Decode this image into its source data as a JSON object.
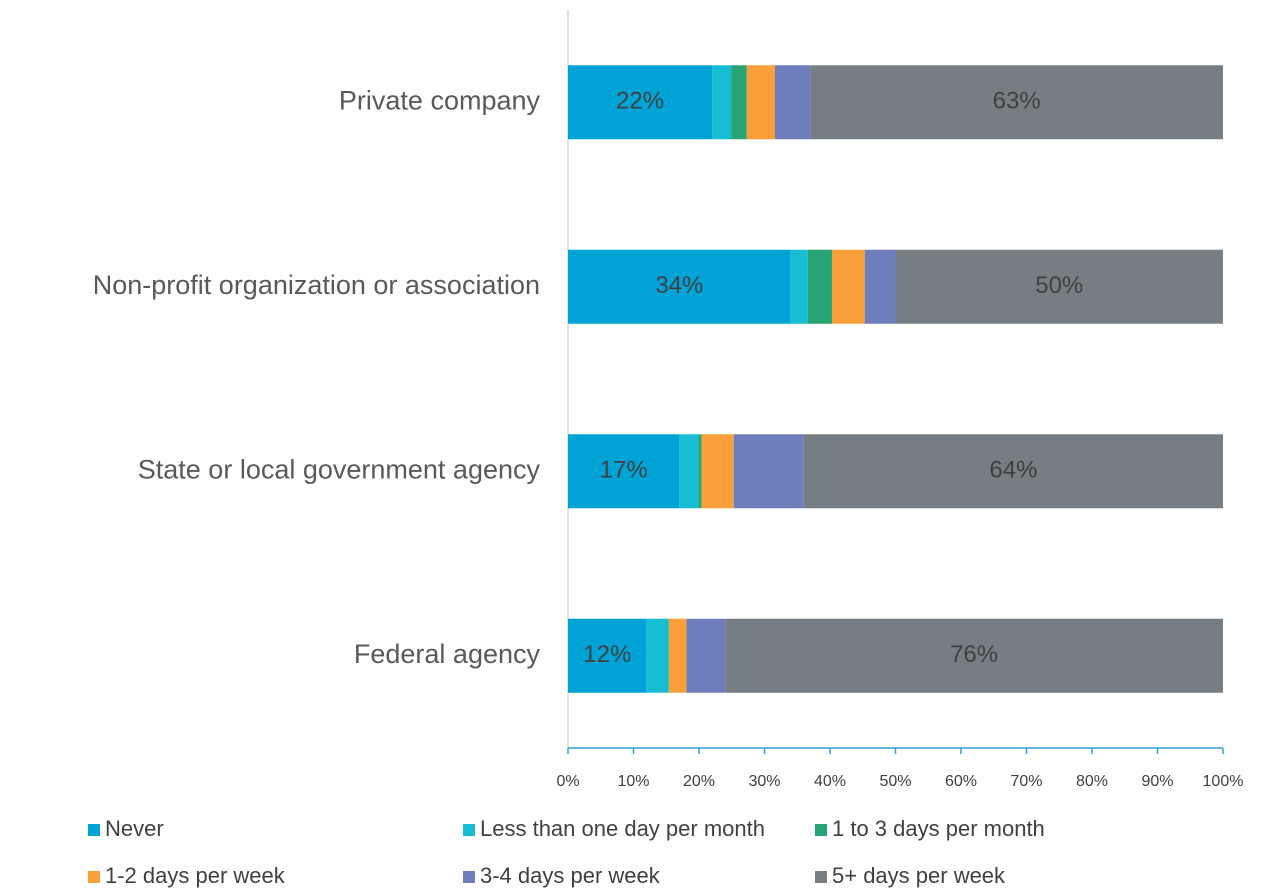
{
  "chart_data": {
    "type": "stacked-bar",
    "orientation": "horizontal",
    "categories": [
      "Private company",
      "Non-profit organization or association",
      "State or local government agency",
      "Federal agency"
    ],
    "series": [
      {
        "name": "Never",
        "color": "#00a3d6",
        "values": [
          22,
          34,
          17,
          12
        ],
        "value_labels": [
          "22%",
          "34%",
          "17%",
          "12%"
        ]
      },
      {
        "name": "Less than one day per month",
        "color": "#17bdd3",
        "values": [
          2.9,
          2.6,
          2.9,
          3.4
        ]
      },
      {
        "name": "1 to 3 days per month",
        "color": "#26a474",
        "values": [
          2.4,
          3.7,
          0.5,
          0
        ]
      },
      {
        "name": "1-2 days per week",
        "color": "#f9a03b",
        "values": [
          4.3,
          5,
          4.9,
          2.7
        ]
      },
      {
        "name": "3-4 days per week",
        "color": "#6e7dbb",
        "values": [
          5.4,
          4.7,
          10.7,
          5.9
        ]
      },
      {
        "name": "5+ days per week",
        "color": "#767e83",
        "values": [
          63,
          50,
          64,
          76
        ],
        "value_labels": [
          "63%",
          "50%",
          "64%",
          "76%"
        ]
      }
    ],
    "xlim": [
      0,
      100
    ],
    "xticks": [
      {
        "value": 0,
        "label": "0%"
      },
      {
        "value": 10,
        "label": "10%"
      },
      {
        "value": 20,
        "label": "20%"
      },
      {
        "value": 30,
        "label": "30%"
      },
      {
        "value": 40,
        "label": "40%"
      },
      {
        "value": 50,
        "label": "50%"
      },
      {
        "value": 60,
        "label": "60%"
      },
      {
        "value": 70,
        "label": "70%"
      },
      {
        "value": 80,
        "label": "80%"
      },
      {
        "value": 90,
        "label": "90%"
      },
      {
        "value": 100,
        "label": "100%"
      }
    ],
    "legend": "bottom"
  }
}
